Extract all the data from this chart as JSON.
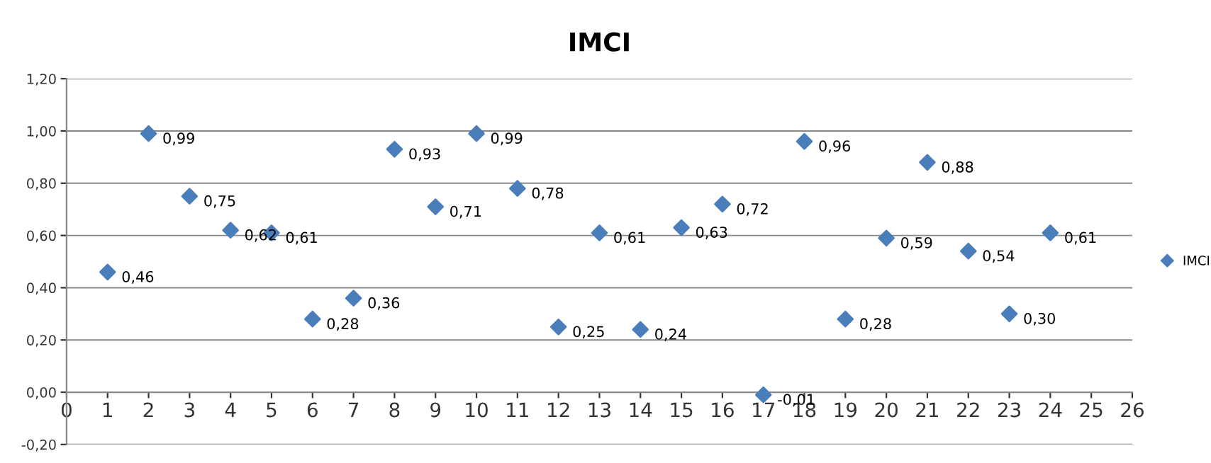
{
  "chart_data": {
    "type": "scatter",
    "title": "IMCI",
    "x": [
      1,
      2,
      3,
      4,
      5,
      6,
      7,
      8,
      9,
      10,
      11,
      12,
      13,
      14,
      15,
      16,
      17,
      18,
      19,
      20,
      21,
      22,
      23,
      24
    ],
    "series": [
      {
        "name": "IMCI",
        "color": "#4a7ebb",
        "values": [
          0.46,
          0.99,
          0.75,
          0.62,
          0.61,
          0.28,
          0.36,
          0.93,
          0.71,
          0.99,
          0.78,
          0.25,
          0.61,
          0.24,
          0.63,
          0.72,
          -0.01,
          0.96,
          0.28,
          0.59,
          0.88,
          0.54,
          0.3,
          0.61
        ],
        "value_labels": [
          "0,46",
          "0,99",
          "0,75",
          "0,62",
          "0,61",
          "0,28",
          "0,36",
          "0,93",
          "0,71",
          "0,99",
          "0,78",
          "0,25",
          "0,61",
          "0,24",
          "0,63",
          "0,72",
          "-0,01",
          "0,96",
          "0,28",
          "0,59",
          "0,88",
          "0,54",
          "0,30",
          "0,61"
        ]
      }
    ],
    "xlim": [
      0,
      26
    ],
    "xticks": [
      0,
      1,
      2,
      3,
      4,
      5,
      6,
      7,
      8,
      9,
      10,
      11,
      12,
      13,
      14,
      15,
      16,
      17,
      18,
      19,
      20,
      21,
      22,
      23,
      24,
      25,
      26
    ],
    "ylim": [
      -0.2,
      1.2
    ],
    "yticks": [
      {
        "value": -0.2,
        "label": "-0,20"
      },
      {
        "value": 0,
        "label": "0,00"
      },
      {
        "value": 0.2,
        "label": "0,20"
      },
      {
        "value": 0.4,
        "label": "0,40"
      },
      {
        "value": 0.6,
        "label": "0,60"
      },
      {
        "value": 0.8,
        "label": "0,80"
      },
      {
        "value": 1.0,
        "label": "1,00"
      },
      {
        "value": 1.2,
        "label": "1,20"
      }
    ],
    "grid": "y",
    "legend": "right",
    "marker": "diamond"
  }
}
